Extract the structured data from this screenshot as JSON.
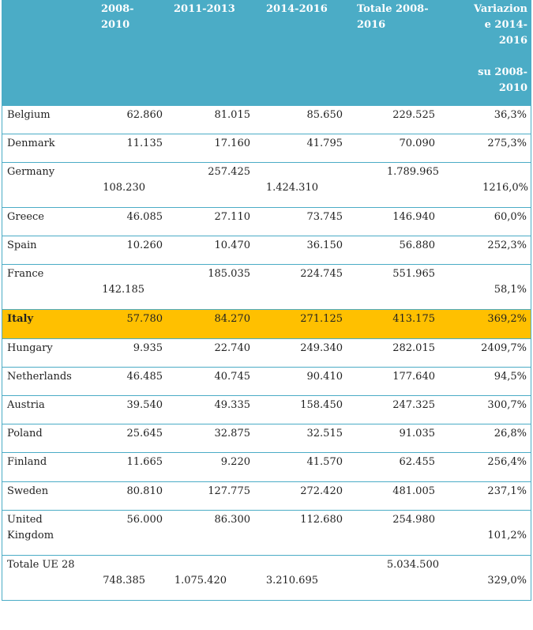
{
  "headers": [
    "2008-\n2010",
    "2011-2013",
    "2014-2016",
    "Totale 2008-\n2016",
    "Variazion\ne 2014-\n2016\n\nsu 2008-\n2010"
  ],
  "rows": [
    {
      "label": "Belgium",
      "v": [
        "62.860",
        "81.015",
        "85.650",
        "229.525",
        "36,3%"
      ]
    },
    {
      "label": "Denmark",
      "v": [
        "11.135",
        "17.160",
        "41.795",
        "70.090",
        "275,3%"
      ]
    },
    {
      "label": "Germany",
      "v": [
        "108.230",
        "257.425",
        "1.424.310",
        "1.789.965",
        "1216,0%"
      ]
    },
    {
      "label": "Greece",
      "v": [
        "46.085",
        "27.110",
        "73.745",
        "146.940",
        "60,0%"
      ]
    },
    {
      "label": "Spain",
      "v": [
        "10.260",
        "10.470",
        "36.150",
        "56.880",
        "252,3%"
      ]
    },
    {
      "label": "France",
      "v": [
        "142.185",
        "185.035",
        "224.745",
        "551.965",
        "58,1%"
      ]
    },
    {
      "label": "Italy",
      "v": [
        "57.780",
        "84.270",
        "271.125",
        "413.175",
        "369,2%"
      ],
      "highlight": true
    },
    {
      "label": "Hungary",
      "v": [
        "9.935",
        "22.740",
        "249.340",
        "282.015",
        "2409,7%"
      ]
    },
    {
      "label": "Netherlands",
      "v": [
        "46.485",
        "40.745",
        "90.410",
        "177.640",
        "94,5%"
      ]
    },
    {
      "label": "Austria",
      "v": [
        "39.540",
        "49.335",
        "158.450",
        "247.325",
        "300,7%"
      ]
    },
    {
      "label": "Poland",
      "v": [
        "25.645",
        "32.875",
        "32.515",
        "91.035",
        "26,8%"
      ]
    },
    {
      "label": "Finland",
      "v": [
        "11.665",
        "9.220",
        "41.570",
        "62.455",
        "256,4%"
      ]
    },
    {
      "label": "Sweden",
      "v": [
        "80.810",
        "127.775",
        "272.420",
        "481.005",
        "237,1%"
      ]
    },
    {
      "label": "United\nKingdom",
      "v": [
        "56.000",
        "86.300",
        "112.680",
        "254.980",
        "101,2%"
      ]
    },
    {
      "label": "Totale UE 28",
      "v": [
        "748.385",
        "1.075.420",
        "3.210.695",
        "5.034.500",
        "329,0%"
      ]
    }
  ],
  "colors": {
    "header_bg": "#4bacc6",
    "highlight_bg": "#ffc000",
    "border": "#4bacc6"
  }
}
